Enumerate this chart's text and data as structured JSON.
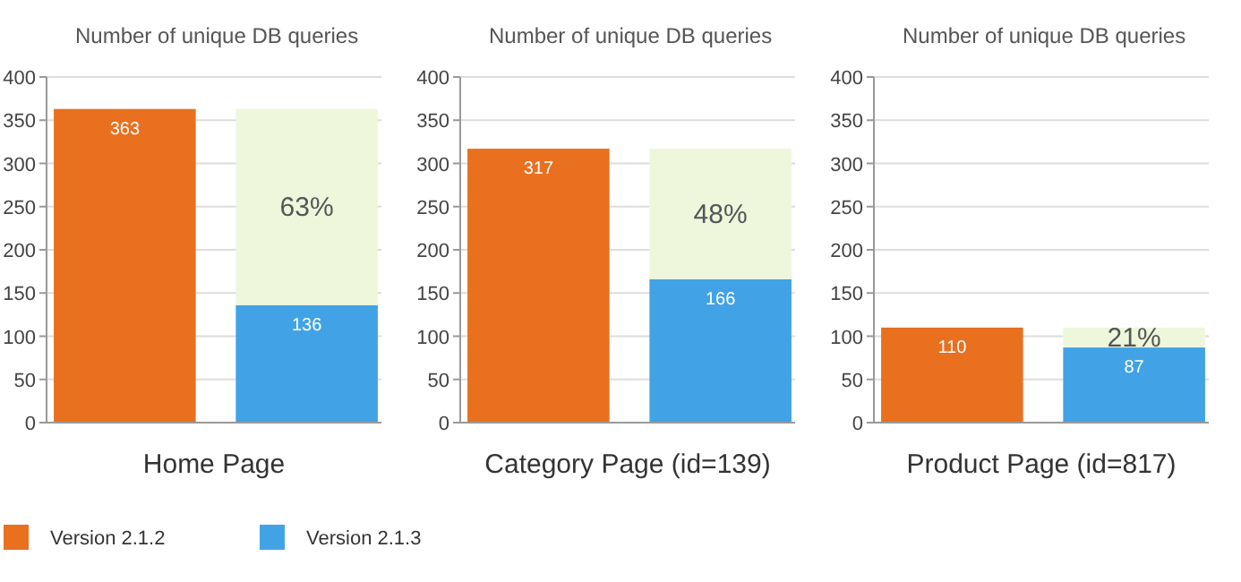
{
  "chart_data": [
    {
      "type": "bar",
      "ylabel": "Number of unique DB queries",
      "xlabel": "Home Page",
      "categories": [
        null,
        null
      ],
      "stacked": true,
      "ylim": [
        0,
        400
      ],
      "yticks": [
        0,
        50,
        100,
        150,
        200,
        250,
        300,
        350,
        400
      ],
      "grid": "y",
      "legend": "bottom",
      "annotations": [
        "63%"
      ],
      "series": [
        {
          "name": "Version 2.1.2",
          "color": "#e8701f",
          "values": [
            363,
            null
          ],
          "value_labels": [
            "363",
            null
          ]
        },
        {
          "name": "Version 2.1.3",
          "color": "#41a3e6",
          "values": [
            null,
            136
          ],
          "value_labels": [
            null,
            "136"
          ]
        },
        {
          "color": "#eef7dc",
          "values": [
            null,
            227
          ]
        }
      ]
    },
    {
      "type": "bar",
      "ylabel": "Number of unique DB queries",
      "xlabel": "Category Page (id=139)",
      "categories": [
        null,
        null
      ],
      "stacked": true,
      "ylim": [
        0,
        400
      ],
      "yticks": [
        0,
        50,
        100,
        150,
        200,
        250,
        300,
        350,
        400
      ],
      "grid": "y",
      "annotations": [
        "48%"
      ],
      "series": [
        {
          "color": "#e8701f",
          "values": [
            317,
            null
          ],
          "value_labels": [
            "317",
            null
          ]
        },
        {
          "color": "#41a3e6",
          "values": [
            null,
            166
          ],
          "value_labels": [
            null,
            "166"
          ]
        },
        {
          "color": "#eef7dc",
          "values": [
            null,
            151
          ]
        }
      ]
    },
    {
      "type": "bar",
      "ylabel": "Number of unique DB queries",
      "xlabel": "Product Page (id=817)",
      "categories": [
        null,
        null
      ],
      "stacked": true,
      "ylim": [
        0,
        400
      ],
      "yticks": [
        0,
        50,
        100,
        150,
        200,
        250,
        300,
        350,
        400
      ],
      "grid": "y",
      "annotations": [
        "21%"
      ],
      "series": [
        {
          "color": "#e8701f",
          "values": [
            110,
            null
          ],
          "value_labels": [
            "110",
            null
          ]
        },
        {
          "color": "#41a3e6",
          "values": [
            null,
            87
          ],
          "value_labels": [
            null,
            "87"
          ]
        },
        {
          "color": "#eef7dc",
          "values": [
            null,
            23
          ]
        }
      ]
    }
  ]
}
